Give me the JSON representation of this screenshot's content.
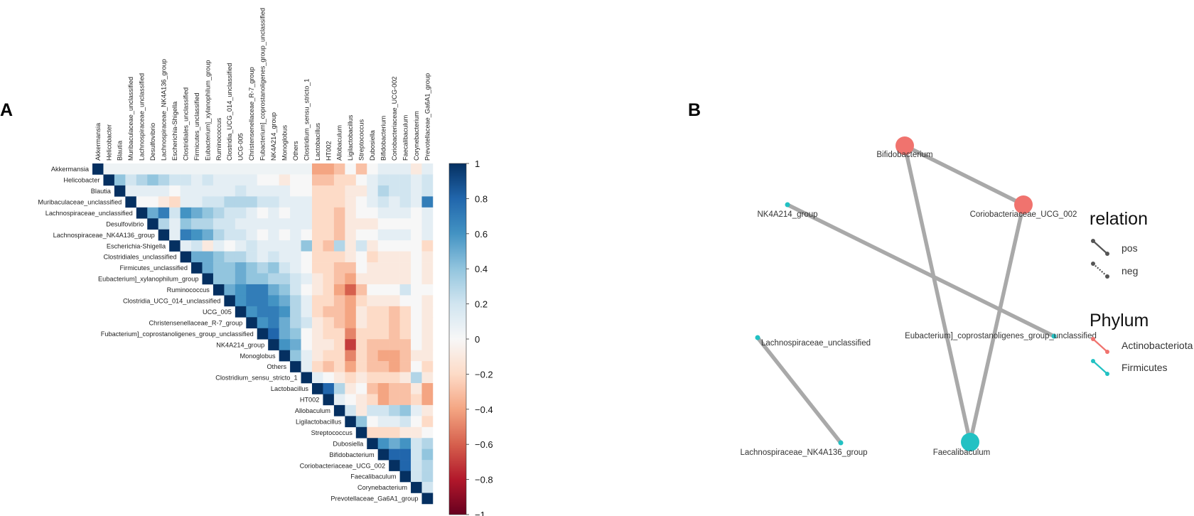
{
  "panel_a_label": "A",
  "panel_b_label": "B",
  "chart_data": [
    {
      "type": "heatmap",
      "title": "",
      "genera": [
        "Akkermansia",
        "Helicobacter",
        "Blautia",
        "Muribaculaceae_unclassified",
        "Lachnospiraceae_unclassified",
        "Desulfovibrio",
        "Lachnospiraceae_NK4A136_group",
        "Escherichia-Shigella",
        "Clostridiales_unclassified",
        "Firmicutes_unclassified",
        "Eubacterium]_xylanophilum_group",
        "Ruminococcus",
        "Clostridia_UCG_014_unclassified",
        "UCG_005",
        "Christensenellaceae_R-7_group",
        "Fubacterium]_coprostanoligenes_group_unclassified",
        "NK4A214_group",
        "Monoglobus",
        "Others",
        "Clostridium_sensu_stricto_1",
        "Lactobacillus",
        "HT002",
        "Allobaculum",
        "Ligilactobacillus",
        "Streptococcus",
        "Dubosiella",
        "Bifidobacterium",
        "Coriobacteriaceae_UCG_002",
        "Faecalibaculum",
        "Corynebacterium",
        "Prevotellaceae_Ga6A1_group"
      ],
      "column_labels": [
        "Akkermansia",
        "Helicobacter",
        "Blautia",
        "Muribaculaceae_unclassified",
        "Lachnospiraceae_unclassified",
        "Desulfovibrio",
        "Lachnospiraceae_NK4A136_group",
        "Escherichia-Shigella",
        "Clostridiales_unclassified",
        "Firmicutes_unclassified",
        "Eubacterium]_xylanophilum_group",
        "Ruminococcus",
        "Clostridia_UCG_014_unclassified",
        "UCG-005",
        "Christensenellaceae_R-7_group",
        "Fubacterium]_coprostanoligenes_group_unclassified",
        "NK4A214_group",
        "Monoglobus",
        "Others",
        "Clostridium_sensu_stricto_1",
        "Lactobacillus",
        "HT002",
        "Allobaculum",
        "Ligilactobacillus",
        "Streptococcus",
        "Dubosiella",
        "Bifidobacterium",
        "Coriobacteriaceae_UCG-002",
        "Faecalibaculum",
        "Corynebacterium",
        "Prevotellaceae_Ga6A1_group"
      ],
      "row_labels": [
        "Akkermansia",
        "Helicobacter",
        "Blautia",
        "Muribaculaceae_unclassified",
        "Lachnospiraceae_unclassified",
        "Desulfovibrio",
        "Lachnospiraceae_NK4A136_group",
        "Escherichia-Shigella",
        "Clostridiales_unclassified",
        "Firmicutes_unclassified",
        "Eubacterium]_xylanophilum_group",
        "Ruminococcus",
        "Clostridia_UCG_014_unclassified",
        "UCG_005",
        "Christensenellaceae_R-7_group",
        "Fubacterium]_coprostanoligenes_group_unclassified",
        "NK4A214_group",
        "Monoglobus",
        "Others",
        "Clostridium_sensu_stricto_1",
        "Lactobacillus",
        "HT002",
        "Allobaculum",
        "Ligilactobacillus",
        "Streptococcus",
        "Dubosiella",
        "Bifidobacterium",
        "Coriobacteriaceae_UCG_002",
        "Faecalibaculum",
        "Corynebacterium",
        "Prevotellaceae_Ga6A1_group"
      ],
      "layout": "upper-triangle",
      "value_range": [
        -1,
        1
      ],
      "colorbar_ticks": [
        "1",
        "0.8",
        "0.6",
        "0.4",
        "0.2",
        "0",
        "−0.2",
        "−0.4",
        "−0.6",
        "−0.8",
        "−1"
      ],
      "colorbar_tick_values": [
        1,
        0.8,
        0.6,
        0.4,
        0.2,
        0,
        -0.2,
        -0.4,
        -0.6,
        -0.8,
        -1
      ],
      "colors": {
        "positive": "#053061",
        "mid": "#f7f7f7",
        "negative": "#67001f"
      },
      "values": [
        [
          1,
          0.05,
          0.05,
          0.05,
          0.05,
          0.05,
          0.05,
          0.05,
          0.05,
          0.05,
          0.05,
          0.05,
          0.05,
          0.05,
          0.05,
          0.05,
          0.05,
          0.05,
          0.05,
          0.05,
          -0.4,
          -0.4,
          -0.3,
          0,
          -0.3,
          0,
          0.1,
          0.1,
          0.1,
          -0.1,
          0.1
        ],
        [
          0,
          1,
          0.4,
          0.2,
          0.3,
          0.4,
          0.3,
          0.2,
          0.2,
          0.1,
          0.2,
          0.1,
          0.1,
          0.1,
          0.1,
          0,
          0,
          -0.1,
          0,
          0,
          -0.3,
          -0.3,
          -0.2,
          -0.2,
          0,
          0.1,
          0.2,
          0.2,
          0.2,
          0.1,
          0.2
        ],
        [
          0,
          0,
          1,
          0.1,
          0.1,
          0.1,
          0.1,
          0,
          0.1,
          0.1,
          0.1,
          0.1,
          0.1,
          0.2,
          0.1,
          0.1,
          0.1,
          0.1,
          0,
          0,
          -0.2,
          -0.2,
          -0.2,
          -0.1,
          -0.1,
          0.1,
          0.3,
          0.2,
          0.2,
          0.1,
          0.2
        ],
        [
          0,
          0,
          0,
          1,
          0,
          0,
          -0.1,
          -0.2,
          0.1,
          0.1,
          0.2,
          0.2,
          0.3,
          0.3,
          0.3,
          0.2,
          0.2,
          0.1,
          0.1,
          0.1,
          -0.2,
          -0.2,
          -0.2,
          -0.1,
          0,
          0.1,
          0.2,
          0.1,
          0.2,
          0.1,
          0.7
        ],
        [
          0,
          0,
          0,
          0,
          1,
          0.5,
          0.7,
          0.2,
          0.6,
          0.5,
          0.4,
          0.3,
          0.2,
          0.2,
          0.1,
          0,
          0.1,
          0,
          0.1,
          0.1,
          -0.2,
          -0.2,
          -0.3,
          -0.1,
          0,
          0,
          0.1,
          0.1,
          0.1,
          0,
          0.1
        ],
        [
          0,
          0,
          0,
          0,
          0,
          1,
          0.3,
          0.1,
          0.4,
          0.3,
          0.3,
          0.2,
          0.2,
          0.1,
          0.1,
          0.1,
          0.1,
          0.1,
          0.1,
          0.1,
          -0.2,
          -0.2,
          -0.3,
          -0.1,
          -0.1,
          -0.1,
          0,
          0,
          0,
          0,
          0.1
        ],
        [
          0,
          0,
          0,
          0,
          0,
          0,
          1,
          0.1,
          0.7,
          0.6,
          0.5,
          0.3,
          0.2,
          0.2,
          0.1,
          0,
          0.1,
          0,
          0.1,
          0,
          -0.2,
          -0.2,
          -0.3,
          -0.1,
          0,
          0,
          0.1,
          0.1,
          0.1,
          0,
          0.1
        ],
        [
          0,
          0,
          0,
          0,
          0,
          0,
          0,
          1,
          0.1,
          0.2,
          -0.1,
          0.1,
          0,
          0.1,
          0.2,
          0.1,
          0.1,
          0.1,
          0.1,
          0.4,
          -0.2,
          -0.3,
          0.3,
          -0.1,
          0.2,
          -0.1,
          0,
          0,
          0,
          0,
          -0.2
        ],
        [
          0,
          0,
          0,
          0,
          0,
          0,
          0,
          0,
          1,
          0.5,
          0.5,
          0.4,
          0.3,
          0.3,
          0.2,
          0.1,
          0.2,
          0.1,
          0.1,
          0,
          -0.2,
          -0.2,
          -0.2,
          -0.1,
          0,
          -0.2,
          -0.1,
          -0.1,
          -0.1,
          0,
          -0.1
        ],
        [
          0,
          0,
          0,
          0,
          0,
          0,
          0,
          0,
          0,
          1,
          0.5,
          0.4,
          0.4,
          0.5,
          0.4,
          0.3,
          0.4,
          0.2,
          0.1,
          0,
          -0.2,
          -0.2,
          -0.3,
          -0.3,
          0,
          -0.1,
          -0.1,
          -0.1,
          -0.1,
          0,
          -0.1
        ],
        [
          0,
          0,
          0,
          0,
          0,
          0,
          0,
          0,
          0,
          0,
          1,
          0.4,
          0.4,
          0.5,
          0.4,
          0.4,
          0.3,
          0.3,
          0.2,
          0.1,
          -0.1,
          -0.2,
          -0.3,
          -0.4,
          -0.1,
          -0.1,
          -0.1,
          -0.1,
          -0.1,
          0,
          -0.1
        ],
        [
          0,
          0,
          0,
          0,
          0,
          0,
          0,
          0,
          0,
          0,
          0,
          1,
          0.5,
          0.6,
          0.7,
          0.7,
          0.5,
          0.4,
          0.2,
          0,
          -0.1,
          -0.2,
          -0.4,
          -0.6,
          -0.3,
          0,
          0,
          0,
          0.2,
          0,
          0
        ],
        [
          0,
          0,
          0,
          0,
          0,
          0,
          0,
          0,
          0,
          0,
          0,
          0,
          1,
          0.6,
          0.7,
          0.7,
          0.6,
          0.5,
          0.3,
          0.1,
          -0.2,
          -0.2,
          -0.3,
          -0.4,
          -0.2,
          -0.1,
          -0.1,
          -0.1,
          0,
          0,
          -0.1
        ],
        [
          0,
          0,
          0,
          0,
          0,
          0,
          0,
          0,
          0,
          0,
          0,
          0,
          0,
          1,
          0.6,
          0.7,
          0.7,
          0.6,
          0.3,
          0.1,
          -0.2,
          -0.3,
          -0.3,
          -0.4,
          -0.1,
          -0.2,
          -0.2,
          -0.3,
          -0.2,
          0,
          -0.1
        ],
        [
          0,
          0,
          0,
          0,
          0,
          0,
          0,
          0,
          0,
          0,
          0,
          0,
          0,
          0,
          1,
          0.6,
          0.7,
          0.5,
          0.3,
          0.2,
          -0.1,
          -0.2,
          -0.3,
          -0.4,
          -0.1,
          -0.2,
          -0.2,
          -0.3,
          -0.2,
          0,
          -0.1
        ],
        [
          0,
          0,
          0,
          0,
          0,
          0,
          0,
          0,
          0,
          0,
          0,
          0,
          0,
          0,
          0,
          1,
          0.8,
          0.5,
          0.4,
          0,
          -0.1,
          -0.2,
          -0.2,
          -0.5,
          -0.2,
          -0.2,
          -0.2,
          -0.3,
          -0.2,
          0,
          -0.1
        ],
        [
          0,
          0,
          0,
          0,
          0,
          0,
          0,
          0,
          0,
          0,
          0,
          0,
          0,
          0,
          0,
          0,
          1,
          0.6,
          0.5,
          0,
          -0.1,
          -0.1,
          -0.2,
          -0.7,
          -0.2,
          -0.3,
          -0.3,
          -0.3,
          -0.3,
          0,
          -0.1
        ],
        [
          0,
          0,
          0,
          0,
          0,
          0,
          0,
          0,
          0,
          0,
          0,
          0,
          0,
          0,
          0,
          0,
          0,
          1,
          0.4,
          0.1,
          -0.1,
          -0.2,
          -0.2,
          -0.5,
          -0.2,
          -0.3,
          -0.4,
          -0.4,
          -0.3,
          -0.1,
          -0.1
        ],
        [
          0,
          0,
          0,
          0,
          0,
          0,
          0,
          0,
          0,
          0,
          0,
          0,
          0,
          0,
          0,
          0,
          0,
          0,
          1,
          0.1,
          -0.2,
          -0.3,
          -0.2,
          -0.4,
          -0.2,
          -0.3,
          -0.3,
          -0.4,
          -0.3,
          0,
          -0.2
        ],
        [
          0,
          0,
          0,
          0,
          0,
          0,
          0,
          0,
          0,
          0,
          0,
          0,
          0,
          0,
          0,
          0,
          0,
          0,
          0,
          1,
          0.1,
          0,
          -0.1,
          -0.2,
          -0.1,
          -0.2,
          -0.2,
          -0.2,
          -0.1,
          0.3,
          -0.1
        ],
        [
          0,
          0,
          0,
          0,
          0,
          0,
          0,
          0,
          0,
          0,
          0,
          0,
          0,
          0,
          0,
          0,
          0,
          0,
          0,
          0,
          1,
          0.8,
          0.3,
          -0.1,
          0,
          -0.3,
          -0.4,
          -0.3,
          -0.3,
          -0.1,
          -0.4
        ],
        [
          0,
          0,
          0,
          0,
          0,
          0,
          0,
          0,
          0,
          0,
          0,
          0,
          0,
          0,
          0,
          0,
          0,
          0,
          0,
          0,
          0,
          1,
          0.1,
          0,
          -0.1,
          -0.2,
          -0.4,
          -0.3,
          -0.3,
          -0.2,
          -0.4
        ],
        [
          0,
          0,
          0,
          0,
          0,
          0,
          0,
          0,
          0,
          0,
          0,
          0,
          0,
          0,
          0,
          0,
          0,
          0,
          0,
          0,
          0,
          0,
          1,
          0.2,
          -0.1,
          0.2,
          0.2,
          0.3,
          0.4,
          0.1,
          -0.1
        ],
        [
          0,
          0,
          0,
          0,
          0,
          0,
          0,
          0,
          0,
          0,
          0,
          0,
          0,
          0,
          0,
          0,
          0,
          0,
          0,
          0,
          0,
          0,
          0,
          1,
          0.4,
          0,
          0.1,
          0.1,
          0.2,
          0,
          -0.2
        ],
        [
          0,
          0,
          0,
          0,
          0,
          0,
          0,
          0,
          0,
          0,
          0,
          0,
          0,
          0,
          0,
          0,
          0,
          0,
          0,
          0,
          0,
          0,
          0,
          0,
          1,
          -0.2,
          -0.2,
          -0.2,
          -0.1,
          -0.1,
          0
        ],
        [
          0,
          0,
          0,
          0,
          0,
          0,
          0,
          0,
          0,
          0,
          0,
          0,
          0,
          0,
          0,
          0,
          0,
          0,
          0,
          0,
          0,
          0,
          0,
          0,
          0,
          1,
          0.6,
          0.5,
          0.6,
          0.2,
          0.3
        ],
        [
          0,
          0,
          0,
          0,
          0,
          0,
          0,
          0,
          0,
          0,
          0,
          0,
          0,
          0,
          0,
          0,
          0,
          0,
          0,
          0,
          0,
          0,
          0,
          0,
          0,
          0,
          1,
          0.8,
          0.8,
          0.2,
          0.4
        ],
        [
          0,
          0,
          0,
          0,
          0,
          0,
          0,
          0,
          0,
          0,
          0,
          0,
          0,
          0,
          0,
          0,
          0,
          0,
          0,
          0,
          0,
          0,
          0,
          0,
          0,
          0,
          0,
          1,
          0.8,
          0.2,
          0.3
        ],
        [
          0,
          0,
          0,
          0,
          0,
          0,
          0,
          0,
          0,
          0,
          0,
          0,
          0,
          0,
          0,
          0,
          0,
          0,
          0,
          0,
          0,
          0,
          0,
          0,
          0,
          0,
          0,
          0,
          1,
          0.2,
          0.3
        ],
        [
          0,
          0,
          0,
          0,
          0,
          0,
          0,
          0,
          0,
          0,
          0,
          0,
          0,
          0,
          0,
          0,
          0,
          0,
          0,
          0,
          0,
          0,
          0,
          0,
          0,
          0,
          0,
          0,
          0,
          1,
          0.2
        ],
        [
          0,
          0,
          0,
          0,
          0,
          0,
          0,
          0,
          0,
          0,
          0,
          0,
          0,
          0,
          0,
          0,
          0,
          0,
          0,
          0,
          0,
          0,
          0,
          0,
          0,
          0,
          0,
          0,
          0,
          0,
          1
        ]
      ]
    },
    {
      "type": "network",
      "title": "",
      "nodes": [
        {
          "id": "bif",
          "label": "Bifidobacterium",
          "phylum": "Actinobacteriota",
          "size": "large"
        },
        {
          "id": "cor",
          "label": "Coriobacteriaceae_UCG_002",
          "phylum": "Actinobacteriota",
          "size": "large"
        },
        {
          "id": "nk",
          "label": "NK4A214_group",
          "phylum": "Firmicutes",
          "size": "small"
        },
        {
          "id": "eub",
          "label": "Eubacterium]_coprostanoligenes_group_unclassified",
          "phylum": "Firmicutes",
          "size": "small"
        },
        {
          "id": "lun",
          "label": "Lachnospiraceae_unclassified",
          "phylum": "Firmicutes",
          "size": "small"
        },
        {
          "id": "lnk",
          "label": "Lachnospiraceae_NK4A136_group",
          "phylum": "Firmicutes",
          "size": "small"
        },
        {
          "id": "fae",
          "label": "Faecalibaculum",
          "phylum": "Firmicutes",
          "size": "large"
        }
      ],
      "edges": [
        {
          "from": "bif",
          "to": "cor",
          "relation": "pos"
        },
        {
          "from": "bif",
          "to": "fae",
          "relation": "pos"
        },
        {
          "from": "cor",
          "to": "fae",
          "relation": "pos"
        },
        {
          "from": "nk",
          "to": "eub",
          "relation": "pos"
        },
        {
          "from": "lun",
          "to": "lnk",
          "relation": "pos"
        }
      ],
      "legend": {
        "relation_title": "relation",
        "relation_items": [
          "pos",
          "neg"
        ],
        "phylum_title": "Phylum",
        "phylum_items": [
          "Actinobacteriota",
          "Firmicutes"
        ]
      },
      "colors": {
        "Actinobacteriota": "#f0736e",
        "Firmicutes": "#22c1c3",
        "edge": "#a9a9a9",
        "legend_line": "#555555"
      }
    }
  ]
}
